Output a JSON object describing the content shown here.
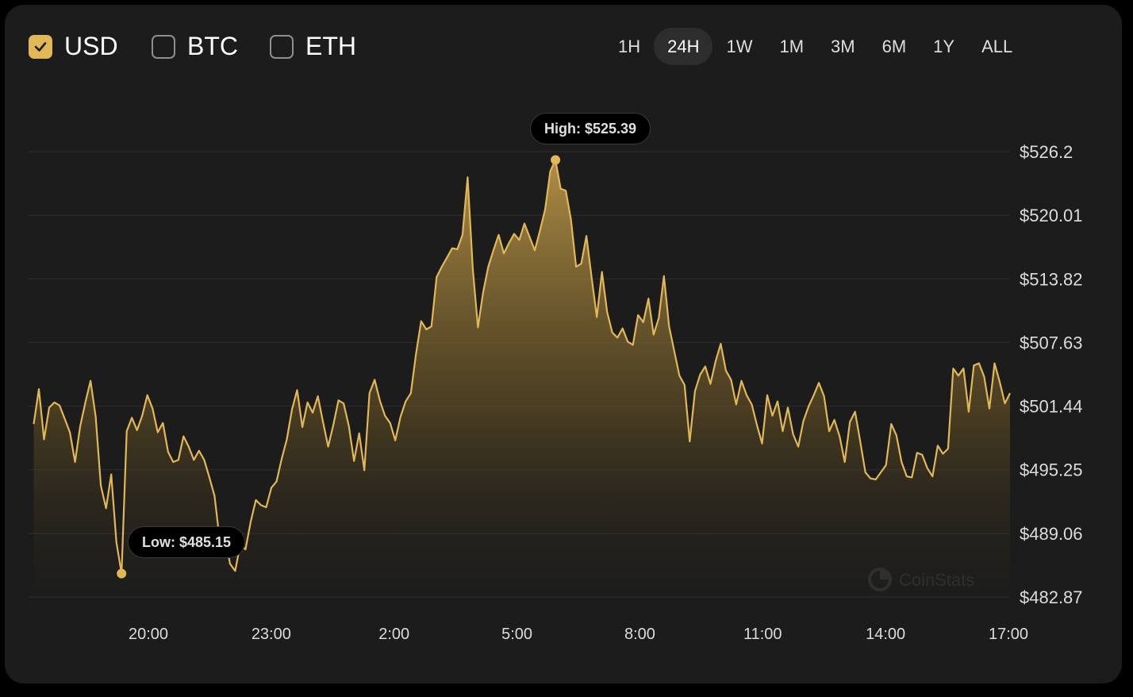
{
  "currencies": [
    {
      "label": "USD",
      "checked": true
    },
    {
      "label": "BTC",
      "checked": false
    },
    {
      "label": "ETH",
      "checked": false
    }
  ],
  "ranges": [
    "1H",
    "24H",
    "1W",
    "1M",
    "3M",
    "6M",
    "1Y",
    "ALL"
  ],
  "active_range": "24H",
  "watermark": "CoinStats",
  "tooltips": {
    "high": "High: $525.39",
    "low": "Low: $485.15"
  },
  "colors": {
    "accent": "#e2b756",
    "background": "#1c1c1c",
    "grid": "#2f2f2f",
    "axis_text": "#dcdcdc"
  },
  "chart_data": {
    "type": "area",
    "title": "",
    "xlabel": "",
    "ylabel": "",
    "x_ticks": [
      "20:00",
      "23:00",
      "2:00",
      "5:00",
      "8:00",
      "11:00",
      "14:00",
      "17:00"
    ],
    "y_ticks": [
      "$526.2",
      "$520.01",
      "$513.82",
      "$507.63",
      "$501.44",
      "$495.25",
      "$489.06",
      "$482.87"
    ],
    "y_tick_values": [
      526.2,
      520.01,
      513.82,
      507.63,
      501.44,
      495.25,
      489.06,
      482.87
    ],
    "ylim": [
      482.87,
      526.2
    ],
    "x_hours_since_17:00_prev_day": "series x values are hours on the 24H axis",
    "series": [
      {
        "name": "USD",
        "points": [
          [
            17.1,
            499.7
          ],
          [
            17.2,
            503.1
          ],
          [
            17.3,
            498.2
          ],
          [
            17.4,
            501.3
          ],
          [
            17.5,
            501.8
          ],
          [
            17.6,
            501.5
          ],
          [
            17.7,
            500.2
          ],
          [
            17.8,
            498.9
          ],
          [
            17.9,
            496.0
          ],
          [
            18.0,
            499.5
          ],
          [
            18.1,
            501.8
          ],
          [
            18.2,
            503.9
          ],
          [
            18.3,
            500.4
          ],
          [
            18.4,
            493.7
          ],
          [
            18.5,
            491.5
          ],
          [
            18.6,
            494.8
          ],
          [
            18.7,
            488.2
          ],
          [
            18.8,
            485.15
          ],
          [
            18.9,
            499.0
          ],
          [
            19.0,
            500.3
          ],
          [
            19.1,
            499.1
          ],
          [
            19.2,
            500.5
          ],
          [
            19.3,
            502.5
          ],
          [
            19.4,
            501.2
          ],
          [
            19.5,
            498.9
          ],
          [
            19.6,
            499.8
          ],
          [
            19.7,
            497.0
          ],
          [
            19.8,
            496.0
          ],
          [
            19.9,
            496.2
          ],
          [
            20.0,
            498.5
          ],
          [
            20.1,
            497.5
          ],
          [
            20.2,
            496.2
          ],
          [
            20.3,
            497.1
          ],
          [
            20.4,
            496.2
          ],
          [
            20.5,
            494.5
          ],
          [
            20.6,
            492.7
          ],
          [
            20.7,
            488.4
          ],
          [
            20.8,
            488.9
          ],
          [
            20.9,
            486.1
          ],
          [
            21.0,
            485.4
          ],
          [
            21.1,
            488.0
          ],
          [
            21.2,
            487.5
          ],
          [
            21.3,
            490.2
          ],
          [
            21.4,
            492.3
          ],
          [
            21.5,
            491.8
          ],
          [
            21.6,
            491.6
          ],
          [
            21.7,
            493.5
          ],
          [
            21.8,
            494.1
          ],
          [
            21.9,
            496.3
          ],
          [
            22.0,
            498.2
          ],
          [
            22.1,
            501.1
          ],
          [
            22.2,
            503.0
          ],
          [
            22.3,
            499.4
          ],
          [
            22.4,
            501.8
          ],
          [
            22.5,
            500.8
          ],
          [
            22.6,
            502.4
          ],
          [
            22.7,
            499.9
          ],
          [
            22.8,
            497.5
          ],
          [
            22.9,
            499.6
          ],
          [
            23.0,
            502.0
          ],
          [
            23.1,
            501.7
          ],
          [
            23.2,
            499.5
          ],
          [
            23.3,
            496.1
          ],
          [
            23.4,
            498.8
          ],
          [
            23.5,
            495.2
          ],
          [
            23.6,
            502.7
          ],
          [
            23.7,
            504.0
          ],
          [
            23.8,
            502.0
          ],
          [
            23.9,
            500.5
          ],
          [
            24.0,
            499.8
          ],
          [
            24.1,
            498.1
          ],
          [
            24.2,
            500.4
          ],
          [
            24.3,
            501.9
          ],
          [
            24.4,
            502.7
          ],
          [
            24.5,
            506.5
          ],
          [
            24.6,
            509.7
          ],
          [
            24.7,
            508.9
          ],
          [
            24.8,
            509.2
          ],
          [
            24.9,
            514.0
          ],
          [
            25.0,
            515.0
          ],
          [
            25.1,
            515.9
          ],
          [
            25.2,
            516.8
          ],
          [
            25.3,
            516.7
          ],
          [
            25.4,
            518.1
          ],
          [
            25.5,
            523.7
          ],
          [
            25.6,
            514.8
          ],
          [
            25.7,
            509.1
          ],
          [
            25.8,
            512.5
          ],
          [
            25.9,
            515.0
          ],
          [
            26.0,
            516.6
          ],
          [
            26.1,
            518.1
          ],
          [
            26.2,
            516.3
          ],
          [
            26.3,
            517.3
          ],
          [
            26.4,
            518.2
          ],
          [
            26.5,
            517.6
          ],
          [
            26.6,
            519.2
          ],
          [
            26.7,
            517.9
          ],
          [
            26.8,
            516.6
          ],
          [
            26.9,
            518.5
          ],
          [
            27.0,
            520.6
          ],
          [
            27.1,
            524.3
          ],
          [
            27.2,
            525.39
          ],
          [
            27.3,
            522.6
          ],
          [
            27.4,
            522.4
          ],
          [
            27.5,
            519.6
          ],
          [
            27.6,
            515.0
          ],
          [
            27.7,
            515.3
          ],
          [
            27.8,
            518.0
          ],
          [
            27.9,
            514.0
          ],
          [
            28.0,
            510.1
          ],
          [
            28.1,
            514.5
          ],
          [
            28.2,
            510.6
          ],
          [
            28.3,
            508.6
          ],
          [
            28.4,
            508.1
          ],
          [
            28.5,
            509.0
          ],
          [
            28.6,
            507.7
          ],
          [
            28.7,
            507.4
          ],
          [
            28.8,
            510.3
          ],
          [
            28.9,
            509.6
          ],
          [
            29.0,
            511.9
          ],
          [
            29.1,
            508.4
          ],
          [
            29.2,
            510.0
          ],
          [
            29.3,
            514.1
          ],
          [
            29.4,
            509.2
          ],
          [
            29.5,
            506.8
          ],
          [
            29.6,
            504.4
          ],
          [
            29.7,
            503.5
          ],
          [
            29.8,
            498.0
          ],
          [
            29.9,
            502.9
          ],
          [
            30.0,
            504.5
          ],
          [
            30.1,
            505.3
          ],
          [
            30.2,
            503.6
          ],
          [
            30.3,
            505.8
          ],
          [
            30.4,
            507.5
          ],
          [
            30.5,
            504.9
          ],
          [
            30.6,
            504.0
          ],
          [
            30.7,
            501.6
          ],
          [
            30.8,
            503.9
          ],
          [
            30.9,
            502.5
          ],
          [
            31.0,
            501.6
          ],
          [
            31.1,
            499.6
          ],
          [
            31.2,
            497.8
          ],
          [
            31.3,
            502.5
          ],
          [
            31.4,
            500.5
          ],
          [
            31.5,
            501.9
          ],
          [
            31.6,
            499.0
          ],
          [
            31.7,
            501.3
          ],
          [
            31.8,
            498.7
          ],
          [
            31.9,
            497.5
          ],
          [
            32.0,
            500.0
          ],
          [
            32.1,
            501.4
          ],
          [
            32.2,
            502.5
          ],
          [
            32.3,
            503.7
          ],
          [
            32.4,
            502.4
          ],
          [
            32.5,
            499.0
          ],
          [
            32.6,
            500.1
          ],
          [
            32.7,
            498.5
          ],
          [
            32.8,
            496.0
          ],
          [
            32.9,
            499.9
          ],
          [
            33.0,
            500.9
          ],
          [
            33.1,
            498.0
          ],
          [
            33.2,
            495.0
          ],
          [
            33.3,
            494.4
          ],
          [
            33.4,
            494.3
          ],
          [
            33.5,
            495.0
          ],
          [
            33.6,
            495.7
          ],
          [
            33.7,
            499.7
          ],
          [
            33.8,
            498.6
          ],
          [
            33.9,
            496.0
          ],
          [
            34.0,
            494.6
          ],
          [
            34.1,
            494.5
          ],
          [
            34.2,
            496.9
          ],
          [
            34.3,
            496.7
          ],
          [
            34.4,
            495.4
          ],
          [
            34.5,
            494.6
          ],
          [
            34.6,
            497.6
          ],
          [
            34.7,
            496.8
          ],
          [
            34.8,
            497.3
          ],
          [
            34.9,
            505.1
          ],
          [
            35.0,
            504.4
          ],
          [
            35.1,
            505.1
          ],
          [
            35.2,
            500.9
          ],
          [
            35.3,
            505.4
          ],
          [
            35.4,
            505.6
          ],
          [
            35.5,
            504.3
          ],
          [
            35.6,
            501.2
          ],
          [
            35.7,
            505.6
          ],
          [
            35.8,
            503.8
          ],
          [
            35.9,
            501.7
          ],
          [
            36.0,
            502.7
          ]
        ]
      }
    ],
    "annotations": [
      {
        "text": "High: $525.39",
        "x": 27.2,
        "y": 525.39
      },
      {
        "text": "Low: $485.15",
        "x": 18.8,
        "y": 485.15
      }
    ],
    "grid": true,
    "legend": "none"
  }
}
